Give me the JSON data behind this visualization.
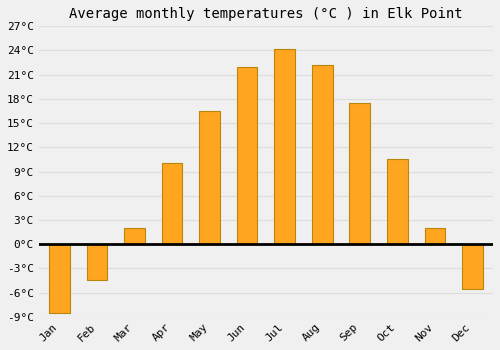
{
  "title": "Average monthly temperatures (°C ) in Elk Point",
  "months": [
    "Jan",
    "Feb",
    "Mar",
    "Apr",
    "May",
    "Jun",
    "Jul",
    "Aug",
    "Sep",
    "Oct",
    "Nov",
    "Dec"
  ],
  "values": [
    -8.5,
    -4.5,
    2.0,
    10.0,
    16.5,
    22.0,
    24.2,
    22.2,
    17.5,
    10.5,
    2.0,
    -5.5
  ],
  "bar_color": "#FFA520",
  "bar_edge_color": "#B8860B",
  "background_color": "#F0F0F0",
  "ylim": [
    -9,
    27
  ],
  "yticks": [
    -9,
    -6,
    -3,
    0,
    3,
    6,
    9,
    12,
    15,
    18,
    21,
    24,
    27
  ],
  "grid_color": "#DDDDDD",
  "zero_line_color": "#000000",
  "title_fontsize": 10,
  "tick_fontsize": 8,
  "bar_width": 0.55
}
